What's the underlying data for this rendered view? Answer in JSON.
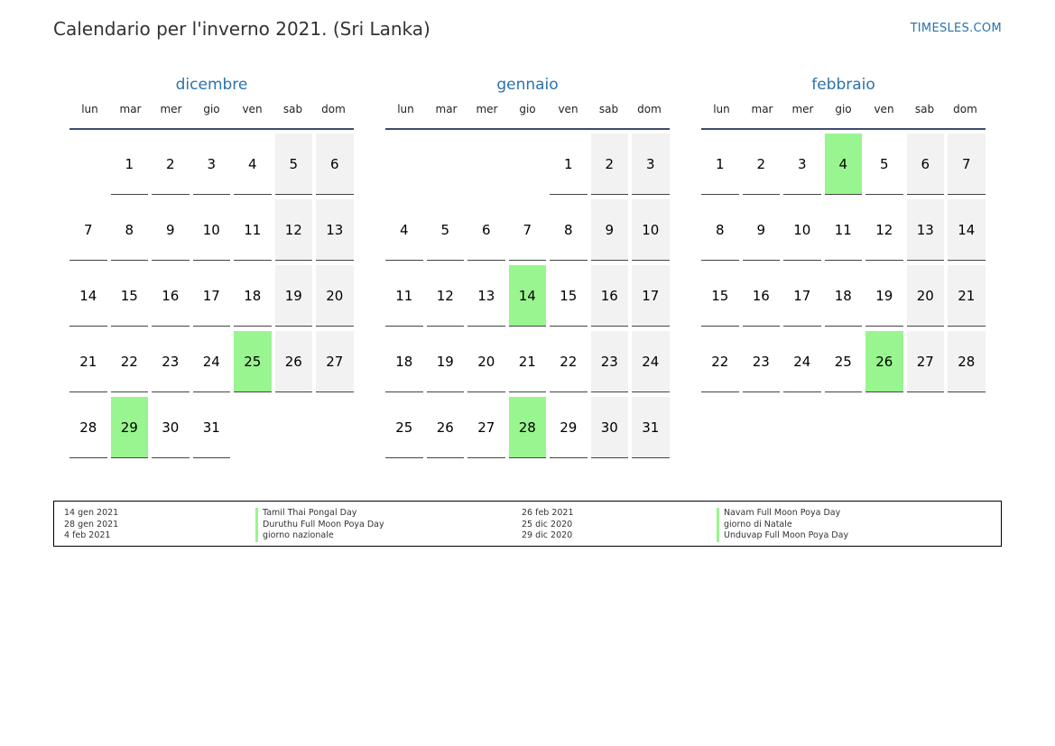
{
  "title": "Calendario per l'inverno 2021. (Sri Lanka)",
  "site": "TIMESLES.COM",
  "colors": {
    "accent": "#2a72ad",
    "holiday": "#99f58f",
    "weekend": "#f2f2f2"
  },
  "weekdays": [
    "lun",
    "mar",
    "mer",
    "gio",
    "ven",
    "sab",
    "dom"
  ],
  "months": [
    {
      "name": "dicembre",
      "offset": 1,
      "days": 31,
      "holidays": [
        25,
        29
      ]
    },
    {
      "name": "gennaio",
      "offset": 4,
      "days": 31,
      "holidays": [
        14,
        28
      ]
    },
    {
      "name": "febbraio",
      "offset": 0,
      "days": 28,
      "holidays": [
        4,
        26
      ]
    }
  ],
  "legend": {
    "left_dates": [
      "14 gen 2021",
      "28 gen 2021",
      "4 feb 2021"
    ],
    "left_names": [
      "Tamil Thai Pongal Day",
      "Duruthu Full Moon Poya Day",
      "giorno nazionale"
    ],
    "right_dates": [
      "26 feb 2021",
      "25 dic 2020",
      "29 dic 2020"
    ],
    "right_names": [
      "Navam Full Moon Poya Day",
      "giorno di Natale",
      "Unduvap Full Moon Poya Day"
    ]
  }
}
